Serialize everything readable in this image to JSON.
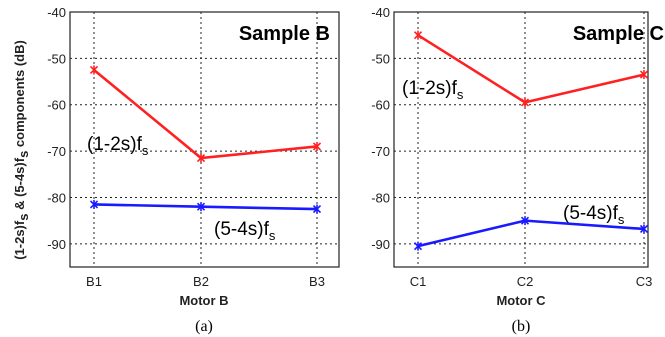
{
  "shared_ylabel": {
    "part1": "(1-2s)f",
    "sub1": "s",
    "part2": " & (5-4s)f",
    "sub2": "s",
    "part3": " components (dB)"
  },
  "chart_data": [
    {
      "type": "line",
      "title": "Sample B",
      "categories": [
        "B1",
        "B2",
        "B3"
      ],
      "xlabel": "Motor B",
      "ylim": [
        -95,
        -40
      ],
      "yticks": [
        -40,
        -50,
        -60,
        -70,
        -80,
        -90
      ],
      "grid": true,
      "caption": "(a)",
      "series": [
        {
          "name": "(1-2s)fs",
          "label_main": "(1-2s)f",
          "label_sub": "s",
          "color": "#ff2020",
          "values": [
            -52.5,
            -71.5,
            -69
          ]
        },
        {
          "name": "(5-4s)fs",
          "label_main": "(5-4s)f",
          "label_sub": "s",
          "color": "#1a1aff",
          "values": [
            -81.5,
            -82,
            -82.5
          ]
        }
      ]
    },
    {
      "type": "line",
      "title": "Sample C",
      "categories": [
        "C1",
        "C2",
        "C3"
      ],
      "xlabel": "Motor C",
      "ylim": [
        -95,
        -40
      ],
      "yticks": [
        -40,
        -50,
        -60,
        -70,
        -80,
        -90
      ],
      "grid": true,
      "caption": "(b)",
      "series": [
        {
          "name": "(1-2s)fs",
          "label_main": "(1-2s)f",
          "label_sub": "s",
          "color": "#ff2020",
          "values": [
            -45,
            -59.5,
            -53.5
          ]
        },
        {
          "name": "(5-4s)fs",
          "label_main": "(5-4s)f",
          "label_sub": "s",
          "color": "#1a1aff",
          "values": [
            -90.5,
            -85,
            -86.8
          ]
        }
      ]
    }
  ]
}
